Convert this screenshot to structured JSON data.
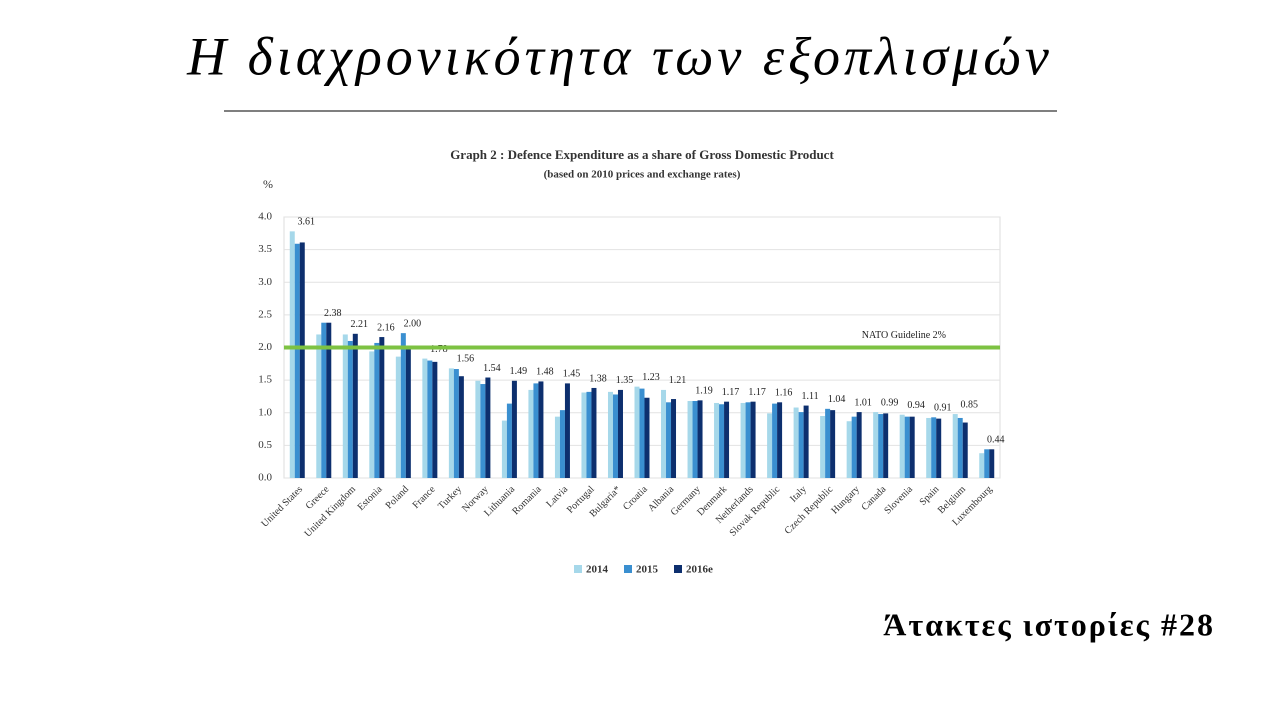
{
  "slide": {
    "title": "Η διαχρονικότητα των εξοπλισμών",
    "footer": "Άτακτες ιστορίες #28"
  },
  "chart_data": {
    "type": "bar",
    "title": "Graph 2 : Defence Expenditure as a share of Gross Domestic Product",
    "subtitle": "(based on 2010 prices and exchange rates)",
    "y_label": "%",
    "categories": [
      "United States",
      "Greece",
      "United Kingdom",
      "Estonia",
      "Poland",
      "France",
      "Turkey",
      "Norway",
      "Lithuania",
      "Romania",
      "Latvia",
      "Portugal",
      "Bulgaria*",
      "Croatia",
      "Albania",
      "Germany",
      "Denmark",
      "Netherlands",
      "Slovak Republic",
      "Italy",
      "Czech Republic",
      "Hungary",
      "Canada",
      "Slovenia",
      "Spain",
      "Belgium",
      "Luxembourg"
    ],
    "series": [
      {
        "name": "2014",
        "color": "#a6d8ea",
        "values": [
          3.78,
          2.2,
          2.2,
          1.94,
          1.86,
          1.83,
          1.68,
          1.49,
          0.88,
          1.35,
          0.94,
          1.31,
          1.32,
          1.4,
          1.35,
          1.18,
          1.15,
          1.15,
          0.99,
          1.08,
          0.95,
          0.87,
          1.01,
          0.97,
          0.92,
          0.98,
          0.38
        ]
      },
      {
        "name": "2015",
        "color": "#3a8fd0",
        "values": [
          3.59,
          2.38,
          2.1,
          2.07,
          2.22,
          1.8,
          1.67,
          1.44,
          1.14,
          1.45,
          1.04,
          1.32,
          1.28,
          1.37,
          1.16,
          1.18,
          1.13,
          1.16,
          1.14,
          1.01,
          1.06,
          0.94,
          0.98,
          0.94,
          0.93,
          0.92,
          0.44
        ]
      },
      {
        "name": "2016e",
        "color": "#0d2f6e",
        "values": [
          3.61,
          2.38,
          2.21,
          2.16,
          2.0,
          1.78,
          1.56,
          1.54,
          1.49,
          1.48,
          1.45,
          1.38,
          1.35,
          1.23,
          1.21,
          1.19,
          1.17,
          1.17,
          1.16,
          1.11,
          1.04,
          1.01,
          0.99,
          0.94,
          0.91,
          0.85,
          0.44
        ],
        "value_labels": [
          "3.61",
          "2.38",
          "2.21",
          "2.16",
          "2.00",
          "1.78",
          "1.56",
          "1.54",
          "1.49",
          "1.48",
          "1.45",
          "1.38",
          "1.35",
          "1.23",
          "1.21",
          "1.19",
          "1.17",
          "1.17",
          "1.16",
          "1.11",
          "1.04",
          "1.01",
          "0.99",
          "0.94",
          "0.91",
          "0.85",
          "0.44"
        ]
      }
    ],
    "ylim": [
      0,
      4
    ],
    "yticks": [
      {
        "value": 0,
        "label": "0.0"
      },
      {
        "value": 0.5,
        "label": "0.5"
      },
      {
        "value": 1,
        "label": "1.0"
      },
      {
        "value": 1.5,
        "label": "1.5"
      },
      {
        "value": 2,
        "label": "2.0"
      },
      {
        "value": 2.5,
        "label": "2.5"
      },
      {
        "value": 3,
        "label": "3.0"
      },
      {
        "value": 3.5,
        "label": "3.5"
      },
      {
        "value": 4,
        "label": "4.0"
      }
    ],
    "grid": true,
    "guideline": {
      "value": 2,
      "label": "NATO Guideline 2%",
      "color": "#7dc242"
    }
  }
}
